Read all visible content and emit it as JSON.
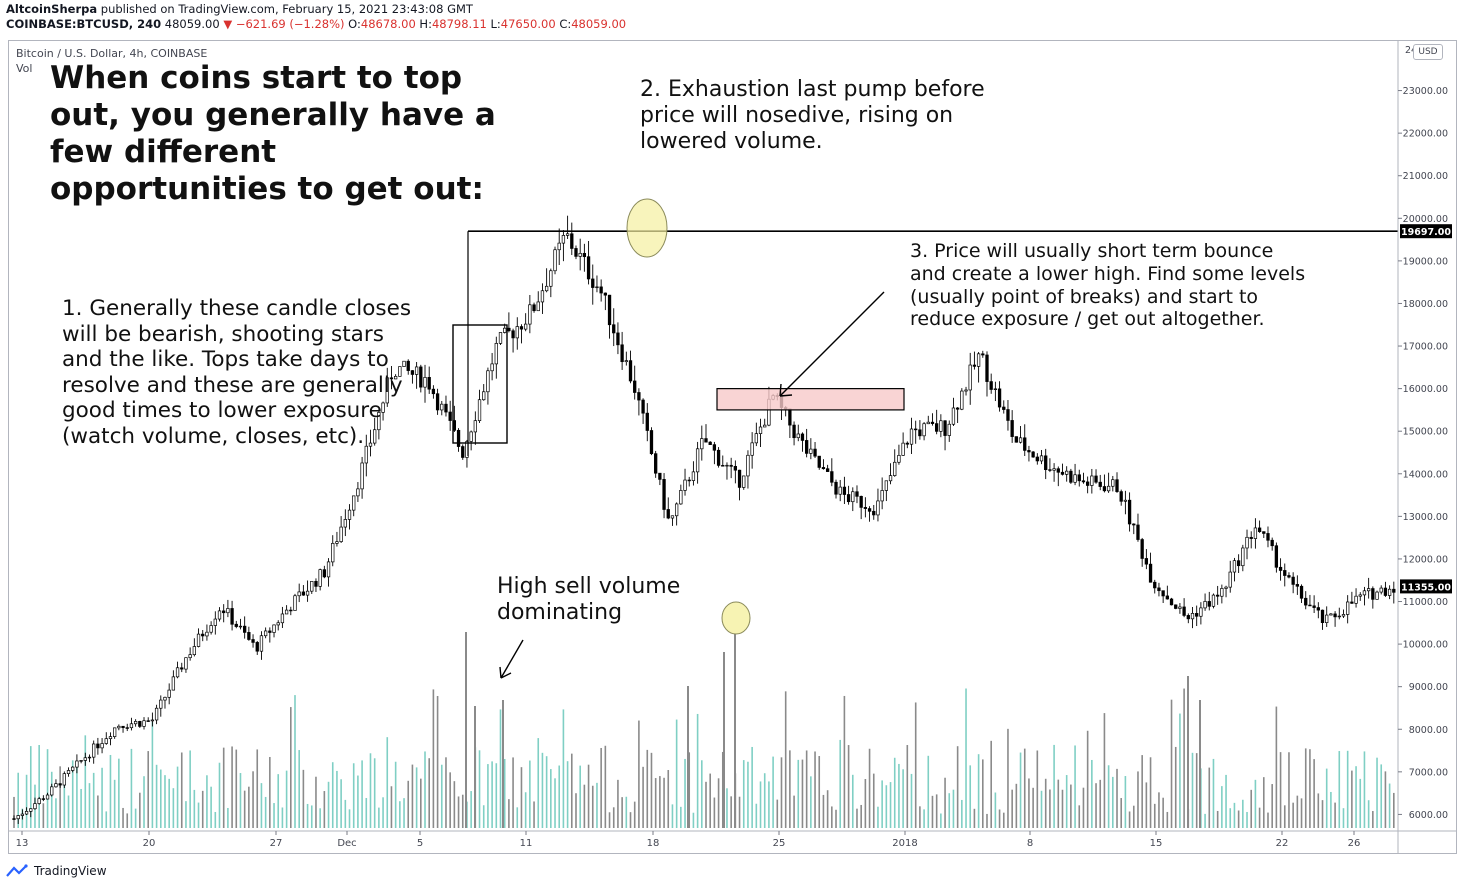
{
  "header": {
    "author": "AltcoinSherpa",
    "published": "published on TradingView.com, February 15, 2021 23:43:08 GMT",
    "symbol": "COINBASE:BTCUSD, 240",
    "last": "48059.00",
    "change": "−621.69 (−1.28%)",
    "o_label": "O:",
    "o": "48678.00",
    "h_label": "H:",
    "h": "48798.11",
    "l_label": "L:",
    "l": "47650.00",
    "c_label": "C:",
    "c": "48059.00",
    "down_arrow": "▼"
  },
  "legend": {
    "series_title": "Bitcoin / U.S. Dollar, 4h, COINBASE",
    "vol_label": "Vol"
  },
  "currency_badge": "USD",
  "annotations": {
    "title": "When coins start to top\nout, you generally have a\nfew different\nopportunities to get out:",
    "point1": "1. Generally these candle closes\nwill be bearish, shooting stars\nand the like. Tops take days to\nresolve and these are generally\ngood times to lower exposure\n(watch volume, closes, etc).",
    "point2": "2. Exhaustion last pump before\nprice will nosedive, rising on\nlowered volume.",
    "point3": "3. Price will usually short term bounce\nand create a lower high. Find some levels\n(usually point of breaks) and start to\nreduce exposure / get out altogether.",
    "volume_note": "High sell volume\ndominating"
  },
  "footer": {
    "brand": "TradingView",
    "logo_icon": "tradingview-logo-icon"
  },
  "colors": {
    "up": "#26a69a",
    "down": "#ef5350",
    "candle": "#000000",
    "volume_up": "#7fcfc4",
    "volume_down": "#8a8a8a",
    "zone_fill": "#f7c9c9",
    "highlight_circle": "#f5f0a0",
    "price_label_bg": "#000000"
  },
  "chart_data": {
    "type": "candlestick",
    "y_axis": {
      "ticks": [
        "6000.00",
        "7000.00",
        "8000.00",
        "9000.00",
        "10000.00",
        "11000.00",
        "12000.00",
        "13000.00",
        "14000.00",
        "15000.00",
        "16000.00",
        "17000.00",
        "18000.00",
        "19000.00",
        "20000.00",
        "21000.00",
        "22000.00",
        "23000.00"
      ],
      "top_label": "24000.00",
      "range": [
        5700,
        24000
      ]
    },
    "x_axis": {
      "ticks": [
        "13",
        "20",
        "27",
        "Dec",
        "5",
        "11",
        "18",
        "25",
        "2018",
        "8",
        "15",
        "22",
        "26"
      ]
    },
    "price_lines": [
      {
        "label": "19697.00",
        "value": 19697
      },
      {
        "label": "11355.00",
        "value": 11355
      }
    ],
    "series_close": [
      {
        "date": "Nov 12",
        "close": 5900
      },
      {
        "date": "Nov 13",
        "close": 6500
      },
      {
        "date": "Nov 16",
        "close": 7300
      },
      {
        "date": "Nov 20",
        "close": 8100
      },
      {
        "date": "Nov 24",
        "close": 8200
      },
      {
        "date": "Nov 27",
        "close": 9700
      },
      {
        "date": "Nov 29",
        "close": 10900
      },
      {
        "date": "Nov 30",
        "close": 9900
      },
      {
        "date": "Dec 1",
        "close": 10900
      },
      {
        "date": "Dec 4",
        "close": 11700
      },
      {
        "date": "Dec 6",
        "close": 13900
      },
      {
        "date": "Dec 7",
        "close": 16500
      },
      {
        "date": "Dec 8",
        "close": 16200
      },
      {
        "date": "Dec 10",
        "close": 14500
      },
      {
        "date": "Dec 12",
        "close": 17000
      },
      {
        "date": "Dec 15",
        "close": 17800
      },
      {
        "date": "Dec 17",
        "close": 19600
      },
      {
        "date": "Dec 19",
        "close": 18300
      },
      {
        "date": "Dec 21",
        "close": 16000
      },
      {
        "date": "Dec 22",
        "close": 12800
      },
      {
        "date": "Dec 23",
        "close": 14800
      },
      {
        "date": "Dec 25",
        "close": 13800
      },
      {
        "date": "Dec 27",
        "close": 15800
      },
      {
        "date": "Dec 29",
        "close": 14500
      },
      {
        "date": "Dec 31",
        "close": 13500
      },
      {
        "date": "Jan 1",
        "close": 13200
      },
      {
        "date": "Jan 3",
        "close": 15000
      },
      {
        "date": "Jan 5",
        "close": 15100
      },
      {
        "date": "Jan 7",
        "close": 16800
      },
      {
        "date": "Jan 9",
        "close": 14800
      },
      {
        "date": "Jan 11",
        "close": 14200
      },
      {
        "date": "Jan 13",
        "close": 13800
      },
      {
        "date": "Jan 15",
        "close": 13700
      },
      {
        "date": "Jan 16",
        "close": 11500
      },
      {
        "date": "Jan 17",
        "close": 10600
      },
      {
        "date": "Jan 19",
        "close": 11200
      },
      {
        "date": "Jan 21",
        "close": 12800
      },
      {
        "date": "Jan 22",
        "close": 11400
      },
      {
        "date": "Jan 23",
        "close": 10500
      },
      {
        "date": "Jan 25",
        "close": 11100
      },
      {
        "date": "Jan 27",
        "close": 11355
      }
    ],
    "key_levels": {
      "top_line": 19697,
      "resistance_zone": [
        15500,
        16000
      ]
    }
  }
}
